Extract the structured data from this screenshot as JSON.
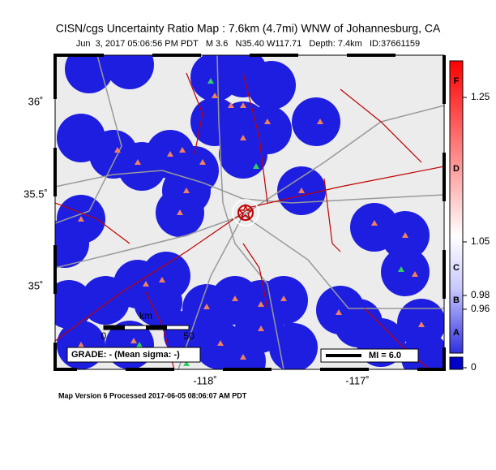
{
  "title": "CISN/cgs Uncertainty Ratio Map : 7.6km (4.7mi) WNW of Johannesburg, CA",
  "subtitle": "Jun  3, 2017 05:06:56 PM PDT   M 3.6   N35.40 W117.71   Depth: 7.4km   ID:37661159",
  "latitude_labels": [
    "36˚",
    "35.5˚",
    "35˚"
  ],
  "longitude_labels": [
    "-118˚",
    "-117˚"
  ],
  "scale_bar": {
    "unit": "km",
    "start": "0",
    "end": "50"
  },
  "grade": "GRADE: - (Mean sigma: -)",
  "mi_label": "MI = 6.0",
  "colorbar": {
    "letters": [
      "F",
      "D",
      "C",
      "B",
      "A"
    ],
    "values": [
      "1.25",
      "1.05",
      "0.98",
      "0.96",
      "0"
    ]
  },
  "footer": "Map Version 6 Processed 2017-06-05 08:06:07 AM PDT"
}
